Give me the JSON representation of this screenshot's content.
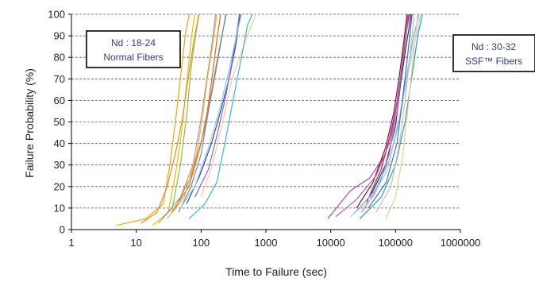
{
  "chart_data": {
    "type": "line",
    "xlabel": "Time to Failure (sec)",
    "ylabel": "Failure Probability (%)",
    "xscale": "log",
    "xlim": [
      1,
      1000000
    ],
    "ylim": [
      0,
      100
    ],
    "xticks": [
      1,
      10,
      100,
      1000,
      10000,
      100000,
      1000000
    ],
    "xtick_labels": [
      "1",
      "10",
      "100",
      "1000",
      "10000",
      "100000",
      "1000000"
    ],
    "yticks": [
      0,
      10,
      20,
      30,
      40,
      50,
      60,
      70,
      80,
      90,
      100
    ],
    "ytick_labels": [
      "0",
      "10",
      "20",
      "30",
      "40",
      "50",
      "60",
      "70",
      "80",
      "90",
      "100"
    ],
    "grid": "horizontal-dashed",
    "annotations": [
      {
        "lines": [
          "Nd : 18-24",
          "Normal Fibers"
        ]
      },
      {
        "lines": [
          "Nd : 30-32",
          "SSF™ Fibers"
        ]
      }
    ],
    "series": [
      {
        "color": "#f2a800",
        "points": [
          [
            5,
            2
          ],
          [
            14,
            5
          ],
          [
            26,
            12
          ],
          [
            33,
            30
          ],
          [
            42,
            55
          ],
          [
            50,
            75
          ],
          [
            58,
            92
          ],
          [
            66,
            100
          ]
        ]
      },
      {
        "color": "#e8c000",
        "points": [
          [
            18,
            2
          ],
          [
            31,
            8
          ],
          [
            40,
            25
          ],
          [
            50,
            45
          ],
          [
            61,
            70
          ],
          [
            70,
            88
          ],
          [
            80,
            100
          ]
        ]
      },
      {
        "color": "#8fbf3a",
        "points": [
          [
            22,
            3
          ],
          [
            36,
            10
          ],
          [
            48,
            30
          ],
          [
            61,
            55
          ],
          [
            70,
            75
          ],
          [
            82,
            90
          ],
          [
            93,
            100
          ]
        ]
      },
      {
        "color": "#f28a2e",
        "points": [
          [
            12,
            3
          ],
          [
            21,
            8
          ],
          [
            30,
            20
          ],
          [
            40,
            35
          ],
          [
            52,
            52
          ],
          [
            63,
            70
          ],
          [
            75,
            85
          ],
          [
            92,
            100
          ]
        ]
      },
      {
        "color": "#e06a10",
        "points": [
          [
            35,
            8
          ],
          [
            65,
            20
          ],
          [
            100,
            40
          ],
          [
            125,
            55
          ],
          [
            150,
            72
          ],
          [
            175,
            88
          ],
          [
            200,
            100
          ]
        ]
      },
      {
        "color": "#d4882a",
        "points": [
          [
            40,
            10
          ],
          [
            70,
            25
          ],
          [
            110,
            45
          ],
          [
            140,
            62
          ],
          [
            180,
            80
          ],
          [
            215,
            92
          ],
          [
            245,
            100
          ]
        ]
      },
      {
        "color": "#a0a0a0",
        "points": [
          [
            25,
            5
          ],
          [
            48,
            15
          ],
          [
            75,
            30
          ],
          [
            98,
            50
          ],
          [
            120,
            68
          ],
          [
            145,
            85
          ],
          [
            168,
            100
          ]
        ]
      },
      {
        "color": "#5a8fd0",
        "points": [
          [
            45,
            8
          ],
          [
            70,
            20
          ],
          [
            100,
            35
          ],
          [
            130,
            55
          ],
          [
            165,
            72
          ],
          [
            205,
            88
          ],
          [
            240,
            100
          ]
        ]
      },
      {
        "color": "#2f4f9f",
        "points": [
          [
            60,
            12
          ],
          [
            95,
            25
          ],
          [
            145,
            40
          ],
          [
            200,
            55
          ],
          [
            270,
            70
          ],
          [
            340,
            85
          ],
          [
            380,
            95
          ],
          [
            400,
            100
          ]
        ]
      },
      {
        "color": "#7a6cc0",
        "points": [
          [
            80,
            15
          ],
          [
            130,
            28
          ],
          [
            180,
            45
          ],
          [
            240,
            62
          ],
          [
            300,
            78
          ],
          [
            350,
            90
          ],
          [
            390,
            100
          ]
        ]
      },
      {
        "color": "#f5c8a0",
        "points": [
          [
            100,
            15
          ],
          [
            150,
            30
          ],
          [
            215,
            50
          ],
          [
            300,
            70
          ],
          [
            450,
            85
          ],
          [
            600,
            95
          ],
          [
            700,
            100
          ]
        ]
      },
      {
        "color": "#3fb8c6",
        "points": [
          [
            65,
            5
          ],
          [
            115,
            12
          ],
          [
            175,
            22
          ],
          [
            240,
            42
          ],
          [
            320,
            62
          ],
          [
            420,
            80
          ],
          [
            520,
            95
          ],
          [
            620,
            100
          ]
        ]
      },
      {
        "color": "#9cc4ea",
        "points": [
          [
            48,
            10
          ],
          [
            80,
            20
          ],
          [
            130,
            38
          ],
          [
            190,
            55
          ],
          [
            260,
            72
          ],
          [
            340,
            88
          ],
          [
            420,
            100
          ]
        ]
      },
      {
        "color": "#f0b050",
        "points": [
          [
            30,
            5
          ],
          [
            55,
            15
          ],
          [
            85,
            35
          ],
          [
            105,
            52
          ],
          [
            125,
            70
          ],
          [
            150,
            85
          ],
          [
            175,
            100
          ]
        ]
      },
      {
        "color": "#b04a9a",
        "points": [
          [
            9000,
            5
          ],
          [
            20000,
            18
          ],
          [
            40000,
            24
          ],
          [
            70000,
            35
          ],
          [
            100000,
            55
          ],
          [
            125000,
            75
          ],
          [
            145000,
            90
          ],
          [
            160000,
            100
          ]
        ]
      },
      {
        "color": "#8b1020",
        "points": [
          [
            25000,
            10
          ],
          [
            45000,
            22
          ],
          [
            70000,
            38
          ],
          [
            95000,
            55
          ],
          [
            115000,
            72
          ],
          [
            135000,
            88
          ],
          [
            150000,
            100
          ]
        ]
      },
      {
        "color": "#c02040",
        "points": [
          [
            35000,
            12
          ],
          [
            60000,
            28
          ],
          [
            85000,
            45
          ],
          [
            110000,
            62
          ],
          [
            130000,
            80
          ],
          [
            150000,
            95
          ],
          [
            165000,
            100
          ]
        ]
      },
      {
        "color": "#1f3a6f",
        "points": [
          [
            40000,
            15
          ],
          [
            70000,
            30
          ],
          [
            100000,
            48
          ],
          [
            120000,
            68
          ],
          [
            145000,
            85
          ],
          [
            175000,
            100
          ]
        ]
      },
      {
        "color": "#d070c0",
        "points": [
          [
            30000,
            8
          ],
          [
            55000,
            20
          ],
          [
            80000,
            35
          ],
          [
            105000,
            55
          ],
          [
            125000,
            75
          ],
          [
            148000,
            92
          ],
          [
            168000,
            100
          ]
        ]
      },
      {
        "color": "#2a9fb0",
        "points": [
          [
            28000,
            5
          ],
          [
            60000,
            15
          ],
          [
            100000,
            30
          ],
          [
            140000,
            50
          ],
          [
            180000,
            72
          ],
          [
            220000,
            90
          ],
          [
            260000,
            100
          ]
        ]
      },
      {
        "color": "#60b8e0",
        "points": [
          [
            22000,
            7
          ],
          [
            48000,
            18
          ],
          [
            80000,
            32
          ],
          [
            115000,
            52
          ],
          [
            150000,
            72
          ],
          [
            190000,
            90
          ],
          [
            230000,
            100
          ]
        ]
      },
      {
        "color": "#a8d0f0",
        "points": [
          [
            20000,
            6
          ],
          [
            45000,
            15
          ],
          [
            75000,
            28
          ],
          [
            110000,
            48
          ],
          [
            150000,
            70
          ],
          [
            200000,
            88
          ],
          [
            245000,
            100
          ]
        ]
      },
      {
        "color": "#f5c88a",
        "points": [
          [
            70000,
            5
          ],
          [
            100000,
            15
          ],
          [
            130000,
            35
          ],
          [
            160000,
            60
          ],
          [
            190000,
            82
          ],
          [
            220000,
            100
          ]
        ]
      },
      {
        "color": "#4a6fb0",
        "points": [
          [
            38000,
            10
          ],
          [
            72000,
            22
          ],
          [
            105000,
            40
          ],
          [
            130000,
            62
          ],
          [
            155000,
            82
          ],
          [
            180000,
            100
          ]
        ]
      },
      {
        "color": "#c0c0c0",
        "points": [
          [
            50000,
            8
          ],
          [
            85000,
            20
          ],
          [
            115000,
            40
          ],
          [
            140000,
            60
          ],
          [
            165000,
            80
          ],
          [
            195000,
            100
          ]
        ]
      },
      {
        "color": "#9a60c0",
        "points": [
          [
            12000,
            6
          ],
          [
            25000,
            14
          ],
          [
            50000,
            25
          ],
          [
            85000,
            42
          ],
          [
            110000,
            62
          ],
          [
            135000,
            82
          ],
          [
            155000,
            100
          ]
        ]
      }
    ]
  }
}
